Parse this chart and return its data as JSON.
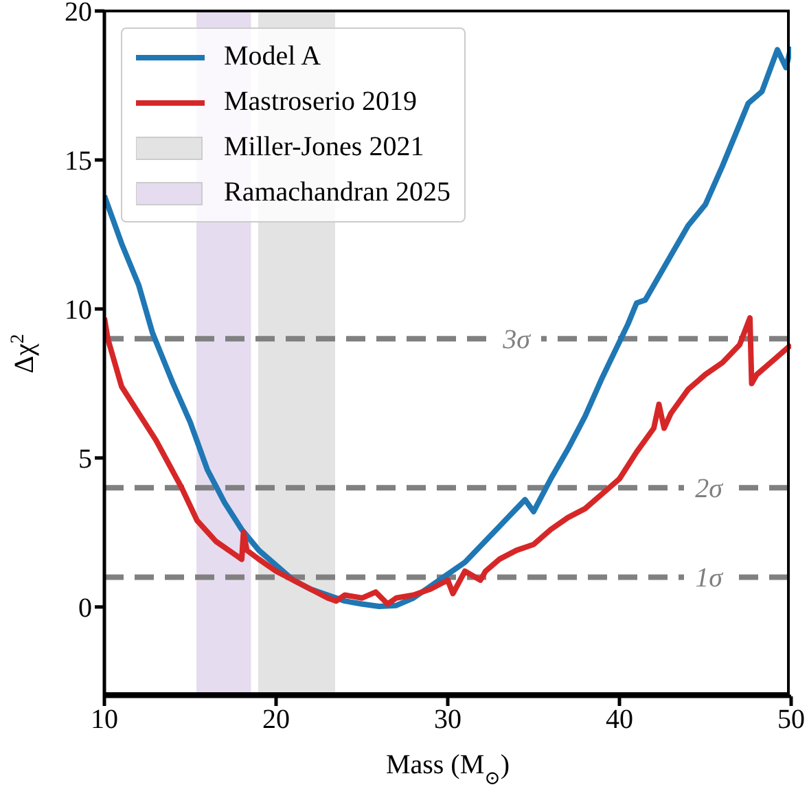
{
  "chart_data": {
    "type": "line",
    "xlabel": "Mass (M$_{⊙}$)",
    "ylabel": "Δχ$^{2}$",
    "xlim": [
      10,
      50
    ],
    "xticks": [
      10,
      20,
      30,
      40,
      50
    ],
    "ylim": [
      -3,
      20
    ],
    "yticks": [
      0,
      5,
      10,
      15,
      20
    ],
    "legend": "top left",
    "grid": false,
    "series": [
      {
        "name": "Model A",
        "color": "#1f77b4",
        "x": [
          10,
          11,
          12,
          12.8,
          14,
          15,
          16,
          17,
          18,
          19,
          20,
          21,
          22,
          23,
          24,
          25,
          26,
          27,
          28,
          29,
          30,
          31,
          32,
          33,
          34,
          34.5,
          35,
          36,
          37,
          38,
          39,
          40,
          40.5,
          41,
          41.5,
          42,
          43,
          44,
          45,
          46,
          47,
          47.5,
          48.3,
          49.2,
          49.7,
          50
        ],
        "values": [
          13.8,
          12.2,
          10.8,
          9.2,
          7.5,
          6.2,
          4.6,
          3.5,
          2.6,
          1.9,
          1.4,
          0.9,
          0.6,
          0.4,
          0.2,
          0.1,
          0.02,
          0.05,
          0.3,
          0.7,
          1.1,
          1.5,
          2.1,
          2.7,
          3.3,
          3.6,
          3.2,
          4.3,
          5.3,
          6.4,
          7.7,
          8.9,
          9.5,
          10.2,
          10.3,
          10.8,
          11.8,
          12.8,
          13.5,
          14.8,
          16.2,
          16.9,
          17.3,
          18.7,
          18.1,
          18.8
        ]
      },
      {
        "name": "Mastroserio 2019",
        "color": "#d62728",
        "x": [
          10,
          10.2,
          11,
          12,
          13,
          14.5,
          15.4,
          16.5,
          17.5,
          18,
          18.1,
          18.3,
          19,
          20,
          21,
          22,
          23,
          23.5,
          24,
          25,
          25.8,
          26.5,
          27,
          28,
          29,
          30,
          30.3,
          31,
          31.9,
          32.2,
          33,
          34,
          35,
          36,
          37,
          38,
          39,
          40,
          41,
          42,
          42.3,
          42.6,
          43,
          44,
          45,
          46,
          46.5,
          47,
          47.6,
          47.7,
          48,
          49,
          50
        ],
        "values": [
          9.7,
          9.0,
          7.4,
          6.5,
          5.6,
          4.0,
          2.9,
          2.2,
          1.8,
          1.6,
          2.5,
          1.9,
          1.6,
          1.2,
          0.9,
          0.6,
          0.3,
          0.2,
          0.4,
          0.3,
          0.5,
          0.1,
          0.3,
          0.4,
          0.6,
          0.9,
          0.45,
          1.2,
          0.9,
          1.2,
          1.6,
          1.9,
          2.1,
          2.6,
          3.0,
          3.3,
          3.8,
          4.3,
          5.2,
          6.0,
          6.8,
          6.0,
          6.5,
          7.3,
          7.8,
          8.2,
          8.5,
          8.8,
          9.7,
          7.5,
          7.8,
          8.3,
          8.8
        ]
      }
    ],
    "bands": [
      {
        "axis": "x",
        "from": 19.0,
        "to": 23.4,
        "label": "Miller-Jones 2021",
        "color": "#e3e3e3"
      },
      {
        "axis": "x",
        "from": 15.4,
        "to": 18.5,
        "label": "Ramachandran 2025",
        "color": "#e6dcf0"
      }
    ],
    "ref_lines": [
      {
        "axis": "y",
        "value": 9,
        "label": "3σ",
        "color": "#808080",
        "line_style": "dashed"
      },
      {
        "axis": "y",
        "value": 4,
        "label": "2σ",
        "color": "#808080",
        "line_style": "dashed"
      },
      {
        "axis": "y",
        "value": 1,
        "label": "1σ",
        "color": "#808080",
        "line_style": "dashed"
      }
    ]
  }
}
